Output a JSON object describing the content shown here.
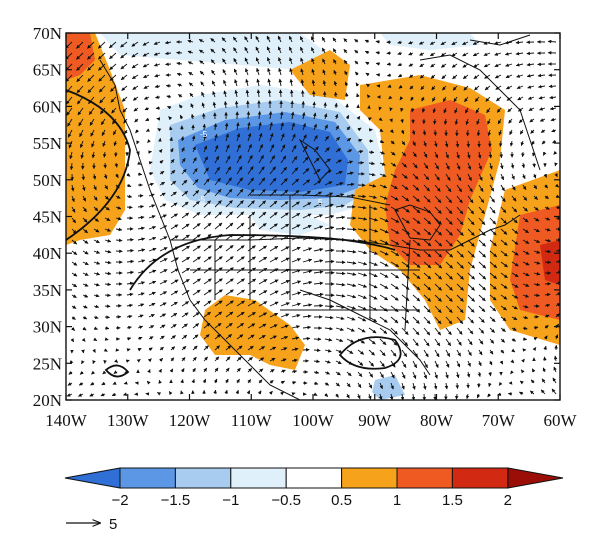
{
  "map": {
    "lat_labels": [
      "70N",
      "65N",
      "60N",
      "55N",
      "50N",
      "45N",
      "40N",
      "35N",
      "30N",
      "25N",
      "20N"
    ],
    "lon_labels": [
      "140W",
      "130W",
      "120W",
      "110W",
      "100W",
      "90W",
      "80W",
      "70W",
      "60W"
    ],
    "extent": {
      "lon_min": -140,
      "lon_max": -60,
      "lat_min": 20,
      "lat_max": 70
    },
    "field": "filled contours (blue = negative, orange/red = positive) with overlaid wind vectors and solid contour lines"
  },
  "colorbar": {
    "ticks": [
      "−2",
      "−1.5",
      "−1",
      "−0.5",
      "0.5",
      "1",
      "1.5",
      "2"
    ],
    "colors": [
      "#2f6fd6",
      "#5c97e6",
      "#a8ccf0",
      "#dff0fb",
      "#ffffff",
      "#f6a21a",
      "#ef5a22",
      "#d22a12",
      "#9b0e08"
    ]
  },
  "legend": {
    "vector_label": "5"
  }
}
